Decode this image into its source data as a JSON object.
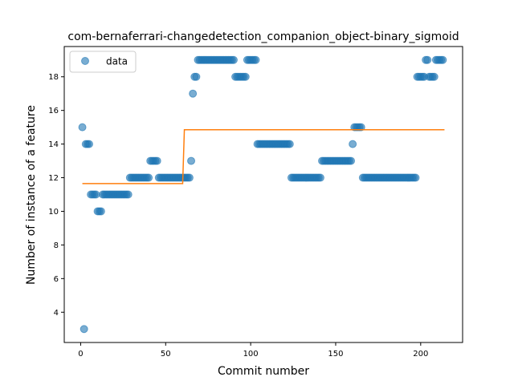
{
  "chart_data": {
    "type": "scatter",
    "title": "com-bernaferrari-changedetection_companion_object-binary_sigmoid",
    "xlabel": "Commit number",
    "ylabel": "Number of instance of a feature",
    "xlim": [
      -9.65,
      224.65
    ],
    "ylim": [
      2.2,
      19.8
    ],
    "xticks": [
      0,
      50,
      100,
      150,
      200
    ],
    "yticks": [
      4,
      6,
      8,
      10,
      12,
      14,
      16,
      18
    ],
    "grid": false,
    "legend": {
      "position": "top-left",
      "entries": [
        "data"
      ]
    },
    "colors": {
      "data": "#1f77b4",
      "fit": "#ff7f0e"
    },
    "series": [
      {
        "name": "data",
        "type": "scatter",
        "points": [
          [
            1,
            15
          ],
          [
            2,
            3
          ],
          [
            3,
            14
          ],
          [
            4,
            14
          ],
          [
            5,
            14
          ],
          [
            6,
            11
          ],
          [
            7,
            11
          ],
          [
            8,
            11
          ],
          [
            9,
            11
          ],
          [
            10,
            10
          ],
          [
            11,
            10
          ],
          [
            12,
            10
          ],
          [
            13,
            11
          ],
          [
            14,
            11
          ],
          [
            15,
            11
          ],
          [
            16,
            11
          ],
          [
            17,
            11
          ],
          [
            18,
            11
          ],
          [
            19,
            11
          ],
          [
            20,
            11
          ],
          [
            21,
            11
          ],
          [
            22,
            11
          ],
          [
            23,
            11
          ],
          [
            24,
            11
          ],
          [
            25,
            11
          ],
          [
            26,
            11
          ],
          [
            27,
            11
          ],
          [
            28,
            11
          ],
          [
            29,
            12
          ],
          [
            30,
            12
          ],
          [
            31,
            12
          ],
          [
            32,
            12
          ],
          [
            33,
            12
          ],
          [
            34,
            12
          ],
          [
            35,
            12
          ],
          [
            36,
            12
          ],
          [
            37,
            12
          ],
          [
            38,
            12
          ],
          [
            39,
            12
          ],
          [
            40,
            12
          ],
          [
            41,
            13
          ],
          [
            42,
            13
          ],
          [
            43,
            13
          ],
          [
            44,
            13
          ],
          [
            45,
            13
          ],
          [
            46,
            12
          ],
          [
            47,
            12
          ],
          [
            48,
            12
          ],
          [
            49,
            12
          ],
          [
            50,
            12
          ],
          [
            51,
            12
          ],
          [
            52,
            12
          ],
          [
            53,
            12
          ],
          [
            54,
            12
          ],
          [
            55,
            12
          ],
          [
            56,
            12
          ],
          [
            57,
            12
          ],
          [
            58,
            12
          ],
          [
            59,
            12
          ],
          [
            60,
            12
          ],
          [
            61,
            12
          ],
          [
            62,
            12
          ],
          [
            63,
            12
          ],
          [
            64,
            12
          ],
          [
            65,
            13
          ],
          [
            66,
            17
          ],
          [
            67,
            18
          ],
          [
            68,
            18
          ],
          [
            69,
            19
          ],
          [
            70,
            19
          ],
          [
            71,
            19
          ],
          [
            72,
            19
          ],
          [
            73,
            19
          ],
          [
            74,
            19
          ],
          [
            75,
            19
          ],
          [
            76,
            19
          ],
          [
            77,
            19
          ],
          [
            78,
            19
          ],
          [
            79,
            19
          ],
          [
            80,
            19
          ],
          [
            81,
            19
          ],
          [
            82,
            19
          ],
          [
            83,
            19
          ],
          [
            84,
            19
          ],
          [
            85,
            19
          ],
          [
            86,
            19
          ],
          [
            87,
            19
          ],
          [
            88,
            19
          ],
          [
            89,
            19
          ],
          [
            90,
            19
          ],
          [
            91,
            18
          ],
          [
            92,
            18
          ],
          [
            93,
            18
          ],
          [
            94,
            18
          ],
          [
            95,
            18
          ],
          [
            96,
            18
          ],
          [
            97,
            18
          ],
          [
            98,
            19
          ],
          [
            99,
            19
          ],
          [
            100,
            19
          ],
          [
            101,
            19
          ],
          [
            102,
            19
          ],
          [
            103,
            19
          ],
          [
            104,
            14
          ],
          [
            105,
            14
          ],
          [
            106,
            14
          ],
          [
            107,
            14
          ],
          [
            108,
            14
          ],
          [
            109,
            14
          ],
          [
            110,
            14
          ],
          [
            111,
            14
          ],
          [
            112,
            14
          ],
          [
            113,
            14
          ],
          [
            114,
            14
          ],
          [
            115,
            14
          ],
          [
            116,
            14
          ],
          [
            117,
            14
          ],
          [
            118,
            14
          ],
          [
            119,
            14
          ],
          [
            120,
            14
          ],
          [
            121,
            14
          ],
          [
            122,
            14
          ],
          [
            123,
            14
          ],
          [
            124,
            12
          ],
          [
            125,
            12
          ],
          [
            126,
            12
          ],
          [
            127,
            12
          ],
          [
            128,
            12
          ],
          [
            129,
            12
          ],
          [
            130,
            12
          ],
          [
            131,
            12
          ],
          [
            132,
            12
          ],
          [
            133,
            12
          ],
          [
            134,
            12
          ],
          [
            135,
            12
          ],
          [
            136,
            12
          ],
          [
            137,
            12
          ],
          [
            138,
            12
          ],
          [
            139,
            12
          ],
          [
            140,
            12
          ],
          [
            141,
            12
          ],
          [
            142,
            13
          ],
          [
            143,
            13
          ],
          [
            144,
            13
          ],
          [
            145,
            13
          ],
          [
            146,
            13
          ],
          [
            147,
            13
          ],
          [
            148,
            13
          ],
          [
            149,
            13
          ],
          [
            150,
            13
          ],
          [
            151,
            13
          ],
          [
            152,
            13
          ],
          [
            153,
            13
          ],
          [
            154,
            13
          ],
          [
            155,
            13
          ],
          [
            156,
            13
          ],
          [
            157,
            13
          ],
          [
            158,
            13
          ],
          [
            159,
            13
          ],
          [
            160,
            14
          ],
          [
            161,
            15
          ],
          [
            162,
            15
          ],
          [
            163,
            15
          ],
          [
            164,
            15
          ],
          [
            165,
            15
          ],
          [
            166,
            12
          ],
          [
            167,
            12
          ],
          [
            168,
            12
          ],
          [
            169,
            12
          ],
          [
            170,
            12
          ],
          [
            171,
            12
          ],
          [
            172,
            12
          ],
          [
            173,
            12
          ],
          [
            174,
            12
          ],
          [
            175,
            12
          ],
          [
            176,
            12
          ],
          [
            177,
            12
          ],
          [
            178,
            12
          ],
          [
            179,
            12
          ],
          [
            180,
            12
          ],
          [
            181,
            12
          ],
          [
            182,
            12
          ],
          [
            183,
            12
          ],
          [
            184,
            12
          ],
          [
            185,
            12
          ],
          [
            186,
            12
          ],
          [
            187,
            12
          ],
          [
            188,
            12
          ],
          [
            189,
            12
          ],
          [
            190,
            12
          ],
          [
            191,
            12
          ],
          [
            192,
            12
          ],
          [
            193,
            12
          ],
          [
            194,
            12
          ],
          [
            195,
            12
          ],
          [
            196,
            12
          ],
          [
            197,
            12
          ],
          [
            198,
            18
          ],
          [
            199,
            18
          ],
          [
            200,
            18
          ],
          [
            201,
            18
          ],
          [
            202,
            18
          ],
          [
            203,
            19
          ],
          [
            204,
            19
          ],
          [
            205,
            18
          ],
          [
            206,
            18
          ],
          [
            207,
            18
          ],
          [
            208,
            18
          ],
          [
            209,
            19
          ],
          [
            210,
            19
          ],
          [
            211,
            19
          ],
          [
            212,
            19
          ],
          [
            213,
            19
          ]
        ]
      },
      {
        "type": "line",
        "points": [
          [
            1,
            11.65
          ],
          [
            60,
            11.65
          ],
          [
            61,
            14.85
          ],
          [
            214,
            14.85
          ]
        ]
      }
    ]
  }
}
